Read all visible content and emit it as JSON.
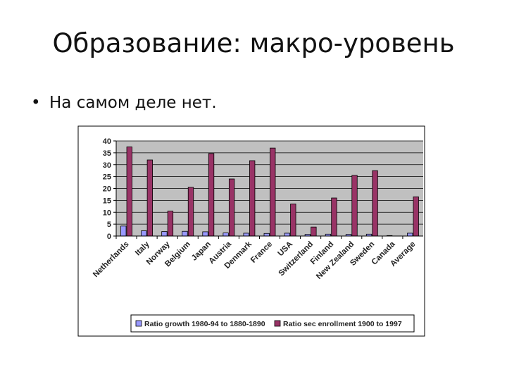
{
  "slide": {
    "title": "Образование: макро-уровень",
    "bullet": "На самом деле нет."
  },
  "chart_data": {
    "type": "bar",
    "categories": [
      "Netherlands",
      "Italy",
      "Norway",
      "Belgium",
      "Japan",
      "Austria",
      "Denmark",
      "France",
      "USA",
      "Switzerland",
      "Finland",
      "New Zealand",
      "Sweden",
      "Canada",
      "Average"
    ],
    "series": [
      {
        "name": "Ratio growth 1980-94 to 1880-1890",
        "color": "#9999ff",
        "values": [
          4.2,
          2.2,
          1.9,
          2.0,
          1.8,
          1.3,
          1.2,
          1.1,
          1.2,
          0.7,
          0.8,
          0.7,
          0.8,
          0.2,
          1.2
        ]
      },
      {
        "name": "Ratio sec enrollment 1900 to 1997",
        "color": "#993366",
        "values": [
          37.5,
          32.0,
          10.5,
          20.5,
          34.7,
          24.0,
          31.7,
          37.0,
          13.5,
          3.8,
          16.0,
          25.5,
          27.5,
          0,
          16.5
        ]
      }
    ],
    "yticks": [
      "0",
      "5",
      "10",
      "15",
      "20",
      "25",
      "30",
      "35",
      "40"
    ],
    "ylim": [
      0,
      40
    ],
    "grid": true,
    "legend_position": "bottom"
  }
}
